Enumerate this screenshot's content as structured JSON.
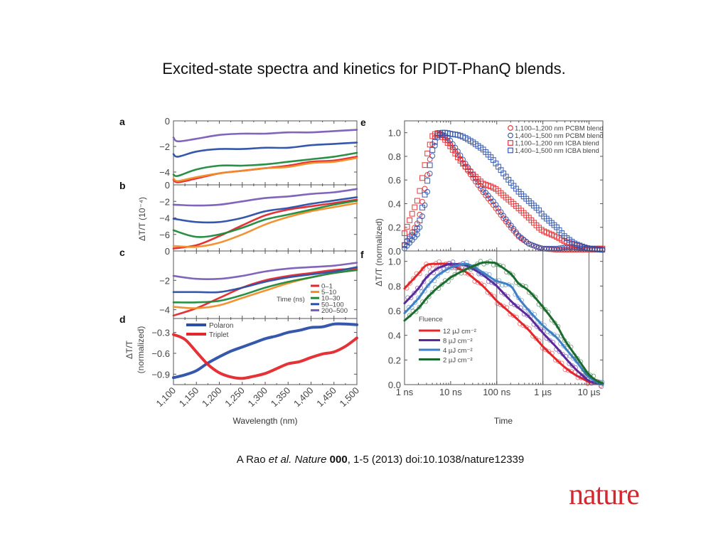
{
  "slide": {
    "title": "Excited-state spectra and kinetics for PIDT-PhanQ blends.",
    "citation": {
      "author": "A Rao ",
      "etal": "et al. Nature",
      "volume": "000",
      "rest": ", 1-5 (2013) doi:10.1038/nature12339"
    },
    "logo": "nature"
  },
  "colors": {
    "red": "#e3272b",
    "orange": "#f28c28",
    "green": "#1e8a3c",
    "blue": "#2a4fa8",
    "purple": "#7a5cb8",
    "lightblue": "#3f7fc4",
    "darkpurple": "#5b2a9a",
    "darkgreen": "#1c6b2e"
  },
  "chart_data": [
    {
      "panel": "a",
      "type": "line",
      "xlabel": "Wavelength (nm)",
      "ylabel": "ΔT/T (10⁻⁴)",
      "xlim": [
        1100,
        1500
      ],
      "ylim": [
        -5,
        0
      ],
      "yticks": [
        0,
        -2,
        -4
      ],
      "x": [
        1100,
        1110,
        1150,
        1200,
        1250,
        1300,
        1350,
        1400,
        1450,
        1500
      ],
      "series": [
        {
          "name": "0-1",
          "color": "red",
          "values": [
            -4.6,
            -4.8,
            -4.5,
            -4.1,
            -3.9,
            -3.7,
            -3.5,
            -3.2,
            -3.1,
            -2.8
          ]
        },
        {
          "name": "5-10",
          "color": "orange",
          "values": [
            -4.5,
            -4.7,
            -4.4,
            -4.1,
            -3.9,
            -3.7,
            -3.6,
            -3.3,
            -3.2,
            -2.9
          ]
        },
        {
          "name": "10-30",
          "color": "green",
          "values": [
            -4.2,
            -4.3,
            -3.8,
            -3.5,
            -3.5,
            -3.4,
            -3.2,
            -3.0,
            -2.8,
            -2.5
          ]
        },
        {
          "name": "50-100",
          "color": "blue",
          "values": [
            -2.6,
            -2.8,
            -2.4,
            -2.2,
            -2.2,
            -2.1,
            -2.1,
            -1.9,
            -1.8,
            -1.7
          ]
        },
        {
          "name": "200-500",
          "color": "purple",
          "values": [
            -1.3,
            -1.6,
            -1.4,
            -1.1,
            -1.0,
            -1.0,
            -0.9,
            -0.9,
            -0.8,
            -0.7
          ]
        }
      ]
    },
    {
      "panel": "b",
      "type": "line",
      "xlim": [
        1100,
        1500
      ],
      "ylim": [
        -8,
        0
      ],
      "yticks": [
        0,
        -2,
        -4,
        -6
      ],
      "x": [
        1100,
        1150,
        1200,
        1250,
        1300,
        1350,
        1400,
        1450,
        1500
      ],
      "series": [
        {
          "name": "0-1",
          "color": "red",
          "values": [
            -7.7,
            -7.3,
            -6.2,
            -4.9,
            -3.7,
            -3.0,
            -2.6,
            -2.2,
            -1.8
          ]
        },
        {
          "name": "5-10",
          "color": "orange",
          "values": [
            -7.4,
            -7.5,
            -7.0,
            -6.0,
            -4.8,
            -3.9,
            -3.2,
            -2.7,
            -2.2
          ]
        },
        {
          "name": "10-30",
          "color": "green",
          "values": [
            -5.5,
            -6.3,
            -6.0,
            -5.2,
            -4.2,
            -3.6,
            -3.0,
            -2.4,
            -1.9
          ]
        },
        {
          "name": "50-100",
          "color": "blue",
          "values": [
            -4.1,
            -4.5,
            -4.5,
            -4.0,
            -3.2,
            -2.8,
            -2.3,
            -1.9,
            -1.5
          ]
        },
        {
          "name": "200-500",
          "color": "purple",
          "values": [
            -2.4,
            -2.5,
            -2.4,
            -2.0,
            -1.6,
            -1.4,
            -1.1,
            -0.9,
            -0.5
          ]
        }
      ]
    },
    {
      "panel": "c",
      "type": "line",
      "xlim": [
        1100,
        1500
      ],
      "ylim": [
        -4.6,
        0
      ],
      "yticks": [
        0,
        -2,
        -4
      ],
      "x": [
        1100,
        1150,
        1200,
        1250,
        1300,
        1350,
        1400,
        1450,
        1500
      ],
      "series": [
        {
          "name": "0-1",
          "color": "red",
          "values": [
            -4.4,
            -3.9,
            -3.2,
            -2.5,
            -2.0,
            -1.7,
            -1.5,
            -1.3,
            -1.2
          ]
        },
        {
          "name": "5-10",
          "color": "orange",
          "values": [
            -3.8,
            -3.9,
            -3.7,
            -3.2,
            -2.7,
            -2.2,
            -1.8,
            -1.5,
            -1.3
          ]
        },
        {
          "name": "10-30",
          "color": "green",
          "values": [
            -3.5,
            -3.5,
            -3.4,
            -3.0,
            -2.5,
            -2.1,
            -1.8,
            -1.5,
            -1.3
          ]
        },
        {
          "name": "50-100",
          "color": "blue",
          "values": [
            -2.8,
            -2.8,
            -2.8,
            -2.5,
            -2.1,
            -1.8,
            -1.6,
            -1.4,
            -1.1
          ]
        },
        {
          "name": "200-500",
          "color": "purple",
          "values": [
            -1.7,
            -1.9,
            -1.9,
            -1.7,
            -1.4,
            -1.2,
            -1.1,
            -1.0,
            -0.8
          ]
        }
      ],
      "legend": {
        "title": "Time (ns)",
        "placement": "bottom-right",
        "entries": [
          "0–1",
          "5–10",
          "10–30",
          "50–100",
          "200–500"
        ]
      }
    },
    {
      "panel": "d",
      "type": "line",
      "ylabel": "ΔT/T (normalized)",
      "xlim": [
        1100,
        1500
      ],
      "ylim": [
        -1.05,
        -0.1
      ],
      "yticks": [
        -0.3,
        -0.6,
        -0.9
      ],
      "xticks": [
        "1,100",
        "1,150",
        "1,200",
        "1,250",
        "1,300",
        "1,350",
        "1,400",
        "1,450",
        "1,500"
      ],
      "x": [
        1100,
        1125,
        1150,
        1175,
        1200,
        1225,
        1250,
        1275,
        1300,
        1325,
        1350,
        1375,
        1400,
        1425,
        1450,
        1475,
        1500
      ],
      "series": [
        {
          "name": "Polaron",
          "color": "blue",
          "values": [
            -0.95,
            -0.91,
            -0.85,
            -0.74,
            -0.65,
            -0.57,
            -0.51,
            -0.45,
            -0.39,
            -0.35,
            -0.3,
            -0.27,
            -0.23,
            -0.22,
            -0.18,
            -0.18,
            -0.19
          ]
        },
        {
          "name": "Triplet",
          "color": "red",
          "values": [
            -0.33,
            -0.4,
            -0.58,
            -0.76,
            -0.88,
            -0.94,
            -0.96,
            -0.93,
            -0.89,
            -0.82,
            -0.75,
            -0.72,
            -0.66,
            -0.61,
            -0.58,
            -0.5,
            -0.38
          ]
        }
      ],
      "legend": {
        "placement": "top-left",
        "entries": [
          "Polaron",
          "Triplet"
        ]
      }
    },
    {
      "panel": "e",
      "type": "scatter",
      "ylabel": "ΔT/T (normalized)",
      "xscale": "log",
      "xlim_ns": [
        1,
        20000
      ],
      "ylim": [
        0,
        1.1
      ],
      "yticks": [
        "0.0",
        "0.2",
        "0.4",
        "0.6",
        "0.8",
        "1.0"
      ],
      "x_ns": [
        1,
        2,
        3,
        4,
        5,
        6,
        8,
        10,
        15,
        20,
        30,
        50,
        80,
        100,
        150,
        200,
        300,
        500,
        800,
        1000,
        2000,
        3000,
        5000,
        8000,
        10000,
        20000
      ],
      "series": [
        {
          "name": "1,100–1,200 nm PCBM blend",
          "marker": "circle",
          "color": "red",
          "values": [
            0.05,
            0.25,
            0.6,
            0.9,
            1.0,
            0.99,
            0.95,
            0.9,
            0.8,
            0.72,
            0.62,
            0.5,
            0.4,
            0.35,
            0.26,
            0.2,
            0.12,
            0.06,
            0.03,
            0.02,
            0.01,
            0.01,
            0.01,
            0.01,
            0.01,
            0.01
          ]
        },
        {
          "name": "1,400–1,500 nm PCBM blend",
          "marker": "circle",
          "color": "blue",
          "values": [
            0.02,
            0.15,
            0.45,
            0.8,
            0.95,
            0.99,
            0.97,
            0.93,
            0.83,
            0.75,
            0.65,
            0.52,
            0.43,
            0.38,
            0.28,
            0.22,
            0.13,
            0.06,
            0.03,
            0.02,
            0.02,
            0.03,
            0.03,
            0.02,
            0.02,
            0.01
          ]
        },
        {
          "name": "1,100–1,200 nm ICBA blend",
          "marker": "square",
          "color": "red",
          "values": [
            0.15,
            0.45,
            0.8,
            0.97,
            1.0,
            0.98,
            0.93,
            0.88,
            0.78,
            0.72,
            0.65,
            0.57,
            0.54,
            0.52,
            0.46,
            0.42,
            0.36,
            0.28,
            0.2,
            0.17,
            0.12,
            0.08,
            0.05,
            0.03,
            0.02,
            0.02
          ]
        },
        {
          "name": "1,400–1,500 nm ICBA blend",
          "marker": "square",
          "color": "blue",
          "values": [
            0.05,
            0.2,
            0.55,
            0.85,
            0.97,
            1.0,
            1.0,
            0.99,
            0.98,
            0.96,
            0.92,
            0.86,
            0.78,
            0.73,
            0.64,
            0.58,
            0.5,
            0.42,
            0.35,
            0.3,
            0.2,
            0.12,
            0.06,
            0.03,
            0.02,
            0.01
          ]
        }
      ],
      "legend": {
        "placement": "top-right",
        "entries": [
          "1,100–1,200 nm PCBM blend",
          "1,400–1,500 nm PCBM blend",
          "1,100–1,200 nm ICBA blend",
          "1,400–1,500 nm ICBA blend"
        ]
      }
    },
    {
      "panel": "f",
      "type": "line",
      "xlabel": "Time",
      "xscale": "log",
      "xlim_ns": [
        1,
        20000
      ],
      "ylim": [
        0,
        1.05
      ],
      "yticks": [
        "0.0",
        "0.2",
        "0.4",
        "0.6",
        "0.8",
        "1.0"
      ],
      "xticks": [
        "1 ns",
        "10 ns",
        "100 ns",
        "1 µs",
        "10 µs"
      ],
      "xticks_ns": [
        1,
        10,
        100,
        1000,
        10000
      ],
      "gridlines_ns": [
        100,
        1000,
        10000
      ],
      "x_ns": [
        1,
        2,
        3,
        5,
        8,
        10,
        20,
        30,
        50,
        80,
        100,
        200,
        300,
        500,
        1000,
        2000,
        3000,
        5000,
        8000,
        10000,
        15000,
        20000
      ],
      "series": [
        {
          "name": "12 µJ cm⁻²",
          "color": "red",
          "values": [
            0.78,
            0.9,
            0.97,
            0.98,
            0.98,
            0.97,
            0.92,
            0.87,
            0.8,
            0.72,
            0.68,
            0.58,
            0.52,
            0.44,
            0.31,
            0.2,
            0.14,
            0.08,
            0.04,
            0.02,
            0.01,
            0.0
          ]
        },
        {
          "name": "8 µJ cm⁻²",
          "color": "darkpurple",
          "values": [
            0.66,
            0.78,
            0.87,
            0.94,
            0.97,
            0.98,
            0.97,
            0.94,
            0.89,
            0.83,
            0.8,
            0.68,
            0.62,
            0.55,
            0.42,
            0.3,
            0.22,
            0.13,
            0.06,
            0.03,
            0.01,
            0.0
          ]
        },
        {
          "name": "4 µJ cm⁻²",
          "color": "lightblue",
          "values": [
            0.58,
            0.7,
            0.79,
            0.88,
            0.93,
            0.95,
            0.98,
            0.96,
            0.91,
            0.86,
            0.84,
            0.8,
            0.7,
            0.6,
            0.48,
            0.38,
            0.3,
            0.2,
            0.1,
            0.06,
            0.02,
            0.0
          ]
        },
        {
          "name": "2 µJ cm⁻²",
          "color": "darkgreen",
          "values": [
            0.52,
            0.62,
            0.7,
            0.78,
            0.84,
            0.87,
            0.93,
            0.96,
            0.99,
            0.99,
            0.98,
            0.9,
            0.82,
            0.76,
            0.63,
            0.48,
            0.36,
            0.24,
            0.13,
            0.08,
            0.03,
            0.01
          ]
        }
      ],
      "legend": {
        "title": "Fluence",
        "placement": "bottom-left",
        "entries": [
          "12 µJ cm⁻²",
          "8 µJ cm⁻²",
          "4 µJ cm⁻²",
          "2 µJ cm⁻²"
        ]
      }
    }
  ],
  "labels": {
    "panel_letters": [
      "a",
      "b",
      "c",
      "d",
      "e",
      "f"
    ],
    "left_ylabel_main": "ΔT/T (10⁻⁴)",
    "left_ylabel_d_line1": "ΔT/T",
    "left_ylabel_d_line2": "(normalized)",
    "right_ylabel": "ΔT/T (normalized)",
    "left_xlabel": "Wavelength (nm)",
    "right_xlabel": "Time",
    "time_legend_title": "Time (ns)",
    "fluence_legend_title": "Fluence"
  }
}
